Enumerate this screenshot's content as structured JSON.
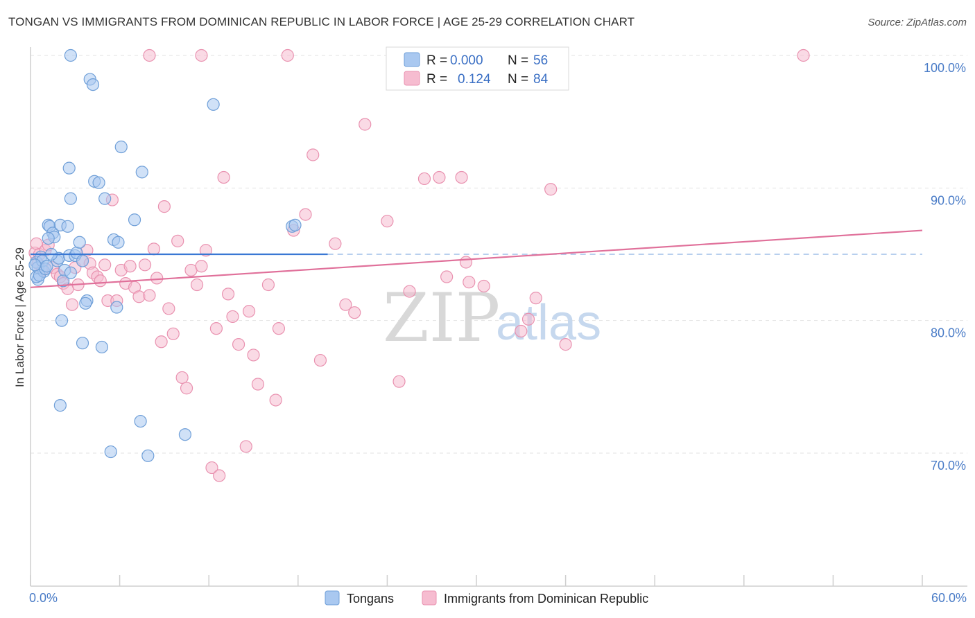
{
  "header": {
    "title": "TONGAN VS IMMIGRANTS FROM DOMINICAN REPUBLIC IN LABOR FORCE | AGE 25-29 CORRELATION CHART",
    "source": "Source: ZipAtlas.com"
  },
  "watermark": {
    "zip": "ZIP",
    "atlas": "atlas"
  },
  "legend": {
    "rows": [
      {
        "r_label": "R =",
        "r_value": "0.000",
        "n_label": "N =",
        "n_value": "56"
      },
      {
        "r_label": "R =",
        "r_value": "0.124",
        "n_label": "N =",
        "n_value": "84"
      }
    ]
  },
  "bottom_legend": {
    "series1": "Tongans",
    "series2": "Immigrants from Dominican Republic"
  },
  "colors": {
    "blue_fill": "#a9c8f0",
    "blue_stroke": "#6f9fd8",
    "blue_line": "#3a78d4",
    "pink_fill": "#f6bcd0",
    "pink_stroke": "#e992b0",
    "pink_line": "#e0709a",
    "grid": "#e2e2e2",
    "axis_text": "#4a7cc7"
  },
  "chart_data": {
    "type": "scatter",
    "title": "TONGAN VS IMMIGRANTS FROM DOMINICAN REPUBLIC IN LABOR FORCE | AGE 25-29 CORRELATION CHART",
    "xlabel": "",
    "ylabel": "In Labor Force | Age 25-29",
    "xlim": [
      0,
      60
    ],
    "ylim": [
      60,
      101.5
    ],
    "x_tick_labels": [
      {
        "value": 0,
        "label": "0.0%"
      },
      {
        "value": 60,
        "label": "60.0%"
      }
    ],
    "y_tick_labels": [
      {
        "value": 100,
        "label": "100.0%"
      },
      {
        "value": 90,
        "label": "90.0%"
      },
      {
        "value": 80,
        "label": "80.0%"
      },
      {
        "value": 70,
        "label": "70.0%"
      }
    ],
    "x_minor_ticks": [
      0,
      6,
      12,
      18,
      24,
      30,
      36,
      42,
      48,
      54,
      60
    ],
    "grid": true,
    "series": [
      {
        "name": "Tongans",
        "color": "blue",
        "R": 0.0,
        "N": 56,
        "trend": {
          "x0": 0,
          "y0": 85.0,
          "x1": 20,
          "y1": 85.0,
          "dashed_to": 60
        },
        "points": [
          [
            0.4,
            84.4
          ],
          [
            0.5,
            83.1
          ],
          [
            0.4,
            83.3
          ],
          [
            0.7,
            84.8
          ],
          [
            0.5,
            84.0
          ],
          [
            0.9,
            83.7
          ],
          [
            0.8,
            84.5
          ],
          [
            0.6,
            83.4
          ],
          [
            1.0,
            83.9
          ],
          [
            1.2,
            87.2
          ],
          [
            1.3,
            87.1
          ],
          [
            1.5,
            86.6
          ],
          [
            1.6,
            86.3
          ],
          [
            1.2,
            86.2
          ],
          [
            1.8,
            84.5
          ],
          [
            1.9,
            84.7
          ],
          [
            2.0,
            87.2
          ],
          [
            2.2,
            83.0
          ],
          [
            2.3,
            83.8
          ],
          [
            2.5,
            87.1
          ],
          [
            2.6,
            84.9
          ],
          [
            2.7,
            83.6
          ],
          [
            2.0,
            73.6
          ],
          [
            2.1,
            80.0
          ],
          [
            2.6,
            91.5
          ],
          [
            2.7,
            89.2
          ],
          [
            2.7,
            100.0
          ],
          [
            3.0,
            84.9
          ],
          [
            3.1,
            85.1
          ],
          [
            3.3,
            85.9
          ],
          [
            3.5,
            78.3
          ],
          [
            3.8,
            81.5
          ],
          [
            3.7,
            81.3
          ],
          [
            4.0,
            98.2
          ],
          [
            4.2,
            97.8
          ],
          [
            4.3,
            90.5
          ],
          [
            4.6,
            90.4
          ],
          [
            4.8,
            78.0
          ],
          [
            5.0,
            89.2
          ],
          [
            5.4,
            70.1
          ],
          [
            5.6,
            86.1
          ],
          [
            5.8,
            81.0
          ],
          [
            5.9,
            85.9
          ],
          [
            6.1,
            93.1
          ],
          [
            7.0,
            87.6
          ],
          [
            7.4,
            72.4
          ],
          [
            7.5,
            91.2
          ],
          [
            7.9,
            69.8
          ],
          [
            10.4,
            71.4
          ],
          [
            12.3,
            96.3
          ],
          [
            17.6,
            87.1
          ],
          [
            17.8,
            87.2
          ],
          [
            3.5,
            84.5
          ],
          [
            1.4,
            85.0
          ],
          [
            0.3,
            84.2
          ],
          [
            1.1,
            84.1
          ]
        ]
      },
      {
        "name": "Immigrants from Dominican Republic",
        "color": "pink",
        "R": 0.124,
        "N": 84,
        "trend": {
          "x0": 0,
          "y0": 82.5,
          "x1": 60,
          "y1": 86.8
        },
        "points": [
          [
            0.3,
            85.1
          ],
          [
            0.4,
            85.8
          ],
          [
            0.5,
            84.3
          ],
          [
            0.6,
            85.0
          ],
          [
            0.8,
            83.8
          ],
          [
            1.0,
            85.3
          ],
          [
            1.2,
            85.7
          ],
          [
            1.5,
            84.0
          ],
          [
            1.8,
            83.5
          ],
          [
            2.0,
            83.3
          ],
          [
            2.2,
            82.8
          ],
          [
            2.5,
            82.4
          ],
          [
            2.8,
            81.2
          ],
          [
            3.0,
            84.0
          ],
          [
            3.2,
            82.7
          ],
          [
            3.5,
            84.5
          ],
          [
            3.8,
            85.3
          ],
          [
            4.0,
            84.3
          ],
          [
            4.2,
            83.6
          ],
          [
            4.5,
            83.3
          ],
          [
            4.7,
            83.0
          ],
          [
            5.0,
            84.2
          ],
          [
            5.2,
            81.5
          ],
          [
            5.5,
            89.1
          ],
          [
            5.8,
            81.5
          ],
          [
            6.1,
            83.8
          ],
          [
            6.4,
            82.8
          ],
          [
            6.7,
            84.1
          ],
          [
            7.0,
            82.5
          ],
          [
            7.3,
            81.8
          ],
          [
            7.7,
            84.2
          ],
          [
            8.0,
            81.9
          ],
          [
            8.3,
            85.4
          ],
          [
            8.5,
            83.2
          ],
          [
            8.8,
            78.4
          ],
          [
            9.0,
            88.6
          ],
          [
            9.3,
            80.9
          ],
          [
            9.6,
            79.0
          ],
          [
            9.9,
            86.0
          ],
          [
            10.2,
            75.7
          ],
          [
            10.5,
            74.9
          ],
          [
            10.8,
            83.8
          ],
          [
            11.2,
            82.7
          ],
          [
            11.5,
            84.1
          ],
          [
            11.8,
            85.3
          ],
          [
            12.2,
            68.9
          ],
          [
            12.5,
            79.4
          ],
          [
            12.7,
            68.3
          ],
          [
            13.0,
            90.8
          ],
          [
            13.3,
            82.0
          ],
          [
            13.6,
            80.3
          ],
          [
            14.0,
            78.2
          ],
          [
            14.5,
            70.5
          ],
          [
            14.7,
            80.7
          ],
          [
            15.0,
            77.4
          ],
          [
            15.3,
            75.2
          ],
          [
            16.0,
            82.7
          ],
          [
            16.5,
            74.0
          ],
          [
            16.7,
            79.4
          ],
          [
            17.7,
            86.8
          ],
          [
            18.5,
            88.0
          ],
          [
            19.0,
            92.5
          ],
          [
            19.5,
            77.0
          ],
          [
            20.5,
            85.8
          ],
          [
            21.2,
            81.2
          ],
          [
            21.8,
            80.6
          ],
          [
            22.5,
            94.8
          ],
          [
            24.0,
            87.5
          ],
          [
            24.8,
            75.4
          ],
          [
            25.5,
            82.2
          ],
          [
            26.5,
            90.7
          ],
          [
            27.5,
            90.8
          ],
          [
            28.0,
            83.3
          ],
          [
            29.0,
            90.8
          ],
          [
            29.3,
            84.4
          ],
          [
            29.5,
            82.9
          ],
          [
            30.5,
            82.6
          ],
          [
            33.0,
            79.2
          ],
          [
            33.5,
            80.1
          ],
          [
            34.0,
            81.7
          ],
          [
            35.0,
            89.9
          ],
          [
            36.0,
            78.2
          ],
          [
            52.0,
            100.0
          ],
          [
            8.0,
            100.0
          ],
          [
            11.5,
            100.0
          ],
          [
            17.3,
            100.0
          ]
        ]
      }
    ]
  }
}
